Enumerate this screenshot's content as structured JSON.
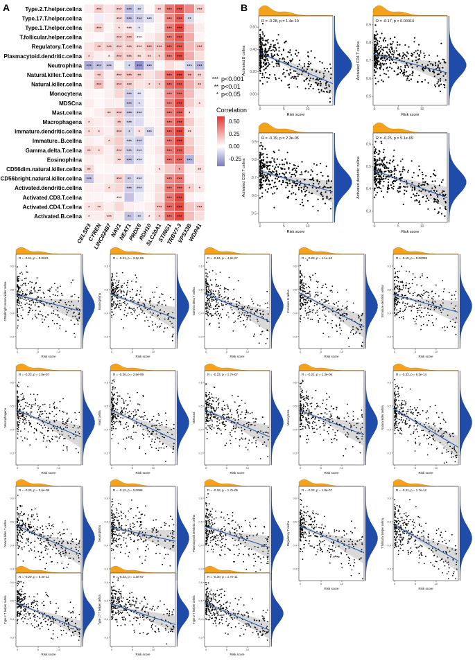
{
  "panel_labels": {
    "a": "A",
    "b": "B"
  },
  "legend": {
    "sig": [
      {
        "stars": "***",
        "label": "p<0.001"
      },
      {
        "stars": "**",
        "label": "p<0.01"
      },
      {
        "stars": "*",
        "label": "p<0.05"
      }
    ],
    "colorbar_title": "Correlation",
    "colorbar_ticks": [
      "0.50",
      "0.25",
      "0.00",
      "-0.25"
    ],
    "colors": {
      "high": "#e0362f",
      "mid": "#ffffff",
      "low": "#7b78c0"
    }
  },
  "common_xlabel": "Risk score",
  "colors": {
    "marginal_top": "#f3a21a",
    "marginal_right": "#1f4ca8",
    "line": "#2a5aa6",
    "band": "#cccccc",
    "point": "#000000"
  },
  "chart_data": [
    {
      "type": "heatmap",
      "title": "",
      "x_categories": [
        "CELSR3",
        "CYREN",
        "LINC02487",
        "NAV1",
        "NEAT1",
        "PRDX6",
        "RDH10",
        "SLC20A1",
        "STING1",
        "TRBV7-3",
        "VPS33B",
        "WDR41"
      ],
      "y_categories": [
        "Type.2.T.helper.cellna",
        "Type.17.T.helper.cellna",
        "Type.1.T.helper.cellna",
        "T.follicular.helper.cellna",
        "Regulatory.T.cellna",
        "Plasmacytoid.dendritic.cellna",
        "Neutrophilna",
        "Natural.killer.T.cellna",
        "Natural.killer.cellna",
        "Monocytena",
        "MDSCna",
        "Mast.cellna",
        "Macrophagena",
        "Immature.dendritic.cellna",
        "Immature..B.cellna",
        "Gamma.delta.T.cellna",
        "Eosinophilna",
        "CD56dim.natural.killer.cellna",
        "CD56bright.natural.killer.cellna",
        "Activated.dendritic.cellna",
        "Activated.CD8.T.cellna",
        "Activated.CD4.T.cellna",
        "Activated.B.cellna"
      ],
      "values": [
        [
          0.05,
          0.15,
          0.08,
          0.15,
          -0.2,
          -0.12,
          0.02,
          0.15,
          0.4,
          0.5,
          0.35,
          0.15
        ],
        [
          0.02,
          -0.05,
          0.05,
          0.12,
          -0.18,
          -0.15,
          -0.1,
          0.05,
          0.35,
          0.48,
          -0.12,
          0.02
        ],
        [
          0.05,
          0.15,
          0.03,
          0.1,
          0.08,
          -0.08,
          0.02,
          0.05,
          0.4,
          0.55,
          0.2,
          0.05
        ],
        [
          0.03,
          0.02,
          0.05,
          0.15,
          0.18,
          0.02,
          0.05,
          0.1,
          0.4,
          0.5,
          0.25,
          0.03
        ],
        [
          0.08,
          0.15,
          0.15,
          0.15,
          0.15,
          0.12,
          0.2,
          0.18,
          0.45,
          0.5,
          0.22,
          0.18
        ],
        [
          0.1,
          0.05,
          0.05,
          0.18,
          0.15,
          0.1,
          0.12,
          0.15,
          0.4,
          0.55,
          0.25,
          0.1
        ],
        [
          -0.25,
          -0.18,
          -0.15,
          0.02,
          -0.12,
          -0.32,
          -0.15,
          0.02,
          0.1,
          0.05,
          -0.12,
          -0.2
        ],
        [
          0.05,
          0.15,
          0.05,
          0.15,
          0.18,
          0.15,
          0.08,
          0.15,
          0.45,
          0.55,
          0.25,
          0.12
        ],
        [
          0.05,
          0.2,
          0.05,
          0.18,
          0.15,
          0.08,
          0.1,
          0.15,
          0.45,
          0.5,
          0.25,
          0.15
        ],
        [
          0.03,
          0.02,
          0.05,
          0.12,
          -0.15,
          -0.08,
          0.02,
          0.05,
          0.35,
          0.45,
          0.2,
          0.05
        ],
        [
          0.05,
          0.02,
          0.05,
          0.05,
          -0.18,
          -0.1,
          0.02,
          0.05,
          0.38,
          0.55,
          0.15,
          0.08
        ],
        [
          0.02,
          0.05,
          0.12,
          0.15,
          -0.15,
          -0.12,
          0.03,
          0.05,
          0.38,
          0.48,
          0.08,
          0.03
        ],
        [
          0.08,
          0.05,
          0.05,
          0.15,
          -0.12,
          -0.1,
          0.03,
          0.05,
          0.38,
          0.5,
          0.15,
          0.05
        ],
        [
          0.1,
          0.08,
          0.05,
          0.15,
          -0.12,
          0.08,
          -0.12,
          0.05,
          0.45,
          0.55,
          0.1,
          0.05
        ],
        [
          0.05,
          0.03,
          0.1,
          0.15,
          -0.12,
          -0.15,
          0.03,
          0.05,
          0.4,
          0.55,
          0.15,
          0.05
        ],
        [
          0.12,
          0.1,
          0.05,
          0.15,
          -0.15,
          -0.12,
          0.03,
          0.08,
          0.4,
          0.5,
          0.2,
          0.05
        ],
        [
          0.05,
          0.03,
          0.05,
          0.12,
          -0.18,
          -0.1,
          0.02,
          0.05,
          0.4,
          0.45,
          -0.22,
          0.08
        ],
        [
          0.12,
          0.02,
          0.03,
          0.03,
          0.02,
          0.05,
          0.02,
          0.08,
          0.15,
          0.25,
          0.05,
          0.1
        ],
        [
          -0.18,
          0.05,
          0.05,
          0.15,
          -0.15,
          -0.1,
          0.03,
          0.05,
          0.35,
          0.4,
          0.05,
          0.05
        ],
        [
          0.05,
          0.05,
          0.1,
          0.12,
          -0.15,
          -0.12,
          0.03,
          0.1,
          0.4,
          0.45,
          0.15,
          0.08
        ],
        [
          0.03,
          0.03,
          0.02,
          0.05,
          -0.18,
          -0.05,
          0.02,
          0.1,
          0.4,
          0.55,
          0.05,
          0.02
        ],
        [
          0.08,
          0.1,
          0.05,
          0.12,
          0.05,
          0.03,
          0.05,
          0.18,
          0.45,
          0.55,
          0.18,
          0.15
        ],
        [
          0.05,
          0.05,
          0.1,
          0.05,
          -0.18,
          -0.12,
          0.05,
          0.15,
          0.45,
          0.55,
          0.2,
          0.1
        ]
      ],
      "significance": [
        [
          "",
          "***",
          "",
          "***",
          "***",
          "**",
          "",
          "**",
          "***",
          "***",
          "",
          "***"
        ],
        [
          "",
          "",
          "",
          "***",
          "***",
          "***",
          "***",
          "",
          "***",
          "***",
          "**",
          ""
        ],
        [
          "",
          "***",
          "",
          "*",
          "***",
          "*",
          "",
          "",
          "***",
          "***",
          "",
          ""
        ],
        [
          "",
          "",
          "",
          "***",
          "***",
          "***",
          "",
          "",
          "***",
          "***",
          "",
          ""
        ],
        [
          "",
          "**",
          "***",
          "***",
          "***",
          "***",
          "***",
          "***",
          "***",
          "***",
          "",
          "***"
        ],
        [
          "*",
          "",
          "*",
          "***",
          "***",
          "**",
          "**",
          "*",
          "***",
          "***",
          "",
          ""
        ],
        [
          "***",
          "***",
          "***",
          "",
          "*",
          "***",
          "***",
          "",
          "",
          "",
          "***",
          "***"
        ],
        [
          "",
          "**",
          "",
          "***",
          "***",
          "**",
          "",
          "",
          "***",
          "***",
          "**",
          "**"
        ],
        [
          "",
          "***",
          "",
          "***",
          "***",
          "",
          "*",
          "*",
          "***",
          "***",
          "",
          "**"
        ],
        [
          "",
          "",
          "",
          "",
          "***",
          "**",
          "",
          "",
          "***",
          "***",
          "",
          ""
        ],
        [
          "",
          "",
          "",
          "",
          "***",
          "*",
          "",
          "",
          "***",
          "***",
          "",
          "*"
        ],
        [
          "",
          "",
          "**",
          "***",
          "***",
          "***",
          "",
          "",
          "***",
          "***",
          "*",
          ""
        ],
        [
          "*",
          "",
          "",
          "**",
          "***",
          "",
          "",
          "",
          "***",
          "***",
          "",
          ""
        ],
        [
          "*",
          "*",
          "",
          "***",
          "*",
          "*",
          "***",
          "",
          "***",
          "***",
          "**",
          ""
        ],
        [
          "",
          "",
          "*",
          "",
          "***",
          "***",
          "",
          "",
          "***",
          "***",
          "",
          ""
        ],
        [
          "**",
          "*",
          "",
          "***",
          "***",
          "***",
          "",
          "",
          "***",
          "***",
          "",
          ""
        ],
        [
          "",
          "",
          "",
          "**",
          "***",
          "***",
          "",
          "",
          "***",
          "***",
          "***",
          ""
        ],
        [
          "**",
          "",
          "",
          "",
          "",
          "",
          "",
          "*",
          "",
          "*",
          "",
          "**"
        ],
        [
          "***",
          "",
          "",
          "***",
          "**",
          "***",
          "",
          "",
          "***",
          "***",
          "",
          ""
        ],
        [
          "",
          "",
          "*",
          "",
          "***",
          "***",
          "",
          "",
          "***",
          "***",
          "*",
          "*"
        ],
        [
          "",
          "",
          "",
          "***",
          "",
          "",
          "",
          "",
          "***",
          "***",
          "",
          ""
        ],
        [
          "*",
          "**",
          "",
          "",
          "",
          "",
          "",
          "***",
          "***",
          "***",
          "",
          "***"
        ],
        [
          "*",
          "",
          "***",
          "",
          "**",
          "**",
          "*",
          "*",
          "***",
          "***",
          "",
          ""
        ]
      ],
      "colorbar_range": [
        -0.4,
        0.6
      ]
    },
    {
      "type": "scatter",
      "title": "R = -0.28, p = 1.4e-10",
      "xlabel": "Risk score",
      "ylabel": "Activated B cellna",
      "xlim": [
        0,
        15
      ],
      "xticks": [
        "0",
        "5",
        "10"
      ],
      "yticks": [
        "0.00",
        "0.20",
        "0.40",
        "0.60"
      ],
      "r": -0.28
    },
    {
      "type": "scatter",
      "title": "R = -0.17, p = 0.00014",
      "xlabel": "Risk score",
      "ylabel": "Activated CD4 T cellna",
      "xlim": [
        0,
        15
      ],
      "xticks": [
        "0",
        "5",
        "10"
      ],
      "yticks": [
        "0.5",
        "0.6",
        "0.7",
        "0.8",
        "0.9"
      ],
      "r": -0.17
    },
    {
      "type": "scatter",
      "title": "R = -0.19, p = 2.3e-05",
      "xlabel": "Risk score",
      "ylabel": "Activated CD8 T cellna",
      "xlim": [
        0,
        15
      ],
      "xticks": [
        "0",
        "5",
        "10"
      ],
      "yticks": [
        "0.5",
        "0.6",
        "0.7",
        "0.8",
        "0.9"
      ],
      "r": -0.19
    },
    {
      "type": "scatter",
      "title": "R = -0.25, p = 5.1e-09",
      "xlabel": "Risk score",
      "ylabel": "Activated dendritic cellna",
      "xlim": [
        0,
        15
      ],
      "xticks": [
        "0",
        "5",
        "10"
      ],
      "yticks": [
        "0.3",
        "0.4",
        "0.5",
        "0.6"
      ],
      "r": -0.25
    },
    {
      "type": "scatter",
      "title": "R = -0.14, p = 0.0023",
      "xlabel": "Risk score",
      "ylabel": "CD56bright natural killer cellna",
      "xlim": [
        0,
        15
      ],
      "xticks": [
        "0",
        "5",
        "10"
      ],
      "yticks": [
        "0.3",
        "0.4",
        "0.5",
        "0.6"
      ],
      "r": -0.14
    },
    {
      "type": "scatter",
      "title": "R = -0.21, p = 3.2e-06",
      "xlabel": "Risk score",
      "ylabel": "Eosinophilna",
      "xlim": [
        0,
        15
      ],
      "xticks": [
        "0",
        "5",
        "10"
      ],
      "yticks": [
        "0.3",
        "0.4",
        "0.5",
        "0.6"
      ],
      "r": -0.21
    },
    {
      "type": "scatter",
      "title": "R = -0.24, p = 4.9e-07",
      "xlabel": "Risk score",
      "ylabel": "Gamma delta T cellna",
      "xlim": [
        0,
        15
      ],
      "xticks": [
        "0",
        "5",
        "10"
      ],
      "yticks": [
        "0.3",
        "0.4",
        "0.5",
        "0.6"
      ],
      "r": -0.24
    },
    {
      "type": "scatter",
      "title": "R = -0.29, p = 1.1e-10",
      "xlabel": "Risk score",
      "ylabel": "Immature B cellna",
      "xlim": [
        0,
        15
      ],
      "xticks": [
        "0",
        "5",
        "10"
      ],
      "yticks": [
        "0.3",
        "0.4",
        "0.5",
        "0.6"
      ],
      "r": -0.29
    },
    {
      "type": "scatter",
      "title": "R = -0.15, p = 0.00099",
      "xlabel": "Risk score",
      "ylabel": "Immature dendritic cellna",
      "xlim": [
        0,
        15
      ],
      "xticks": [
        "0",
        "5",
        "10"
      ],
      "yticks": [
        "0.3",
        "0.4",
        "0.5",
        "0.6"
      ],
      "r": -0.15
    },
    {
      "type": "scatter",
      "title": "R = -0.23, p = 1.5e-07",
      "xlabel": "Risk score",
      "ylabel": "Macrophagena",
      "xlim": [
        0,
        15
      ],
      "xticks": [
        "0",
        "5",
        "10"
      ],
      "yticks": [
        "0.3",
        "0.4",
        "0.5",
        "0.6"
      ],
      "r": -0.23
    },
    {
      "type": "scatter",
      "title": "R = -0.26, p = 2.6e-09",
      "xlabel": "Risk score",
      "ylabel": "Mast cellna",
      "xlim": [
        0,
        15
      ],
      "xticks": [
        "0",
        "5",
        "10"
      ],
      "yticks": [
        "0.3",
        "0.4",
        "0.5",
        "0.6"
      ],
      "r": -0.26
    },
    {
      "type": "scatter",
      "title": "R = -0.23, p = 1.7e-07",
      "xlabel": "Risk score",
      "ylabel": "MDSCna",
      "xlim": [
        0,
        15
      ],
      "xticks": [
        "0",
        "5",
        "10"
      ],
      "yticks": [
        "0.3",
        "0.4",
        "0.5",
        "0.6"
      ],
      "r": -0.23
    },
    {
      "type": "scatter",
      "title": "R = -0.21, p = 1.3e-06",
      "xlabel": "Risk score",
      "ylabel": "Monocytena",
      "xlim": [
        0,
        15
      ],
      "xticks": [
        "0",
        "5",
        "10"
      ],
      "yticks": [
        "0.3",
        "0.4",
        "0.5",
        "0.6"
      ],
      "r": -0.21
    },
    {
      "type": "scatter",
      "title": "R = -0.33, p = 6.3e-14",
      "xlabel": "Risk score",
      "ylabel": "Natural killer cellna",
      "xlim": [
        0,
        15
      ],
      "xticks": [
        "0",
        "5",
        "10"
      ],
      "yticks": [
        "0.3",
        "0.4",
        "0.5",
        "0.6"
      ],
      "r": -0.33
    },
    {
      "type": "scatter",
      "title": "R = -0.25, p = 2.6e-08",
      "xlabel": "Risk score",
      "ylabel": "Natural killer T cellna",
      "xlim": [
        0,
        15
      ],
      "xticks": [
        "0",
        "5",
        "10"
      ],
      "yticks": [
        "0.3",
        "0.4",
        "0.5",
        "0.6"
      ],
      "r": -0.25
    },
    {
      "type": "scatter",
      "title": "R = -0.12, p = 0.0088",
      "xlabel": "Risk score",
      "ylabel": "Neutrophilna",
      "xlim": [
        0,
        15
      ],
      "xticks": [
        "0",
        "5",
        "10"
      ],
      "yticks": [
        "0.3",
        "0.4",
        "0.5",
        "0.6"
      ],
      "r": -0.12
    },
    {
      "type": "scatter",
      "title": "R = -0.18, p = 1.7e-05",
      "xlabel": "Risk score",
      "ylabel": "Plasmacytoid dendritic cellna",
      "xlim": [
        0,
        15
      ],
      "xticks": [
        "0",
        "5",
        "10"
      ],
      "yticks": [
        "0.3",
        "0.4",
        "0.5",
        "0.6"
      ],
      "r": -0.18
    },
    {
      "type": "scatter",
      "title": "R = -0.23, p = 1.8e-07",
      "xlabel": "Risk score",
      "ylabel": "Regulatory T cellna",
      "xlim": [
        0,
        15
      ],
      "xticks": [
        "0",
        "5",
        "10"
      ],
      "yticks": [
        "0.3",
        "0.4",
        "0.5",
        "0.6"
      ],
      "r": -0.23
    },
    {
      "type": "scatter",
      "title": "R = -0.31, p = 1.7e-12",
      "xlabel": "Risk score",
      "ylabel": "T follicular helper cellna",
      "xlim": [
        0,
        15
      ],
      "xticks": [
        "0",
        "5",
        "10"
      ],
      "yticks": [
        "0.3",
        "0.4",
        "0.5",
        "0.6"
      ],
      "r": -0.31
    },
    {
      "type": "scatter",
      "title": "R = -0.29, p = 5.4e-11",
      "xlabel": "Risk score",
      "ylabel": "Type 1 T helper cellna",
      "xlim": [
        0,
        15
      ],
      "xticks": [
        "0",
        "5",
        "10"
      ],
      "yticks": [
        "0.3",
        "0.4",
        "0.5",
        "0.6"
      ],
      "r": -0.29
    },
    {
      "type": "scatter",
      "title": "R = -0.23, p = 1.3e-07",
      "xlabel": "Risk score",
      "ylabel": "Type 17 T helper cellna",
      "xlim": [
        0,
        15
      ],
      "xticks": [
        "0",
        "5",
        "10"
      ],
      "yticks": [
        "0.3",
        "0.4",
        "0.5",
        "0.6"
      ],
      "r": -0.23
    },
    {
      "type": "scatter",
      "title": "R = -0.30, p = 1.7e-11",
      "xlabel": "Risk score",
      "ylabel": "Type 2 T helper cellna",
      "xlim": [
        0,
        15
      ],
      "xticks": [
        "0",
        "5",
        "10"
      ],
      "yticks": [
        "0.3",
        "0.4",
        "0.5",
        "0.6"
      ],
      "r": -0.3
    }
  ]
}
